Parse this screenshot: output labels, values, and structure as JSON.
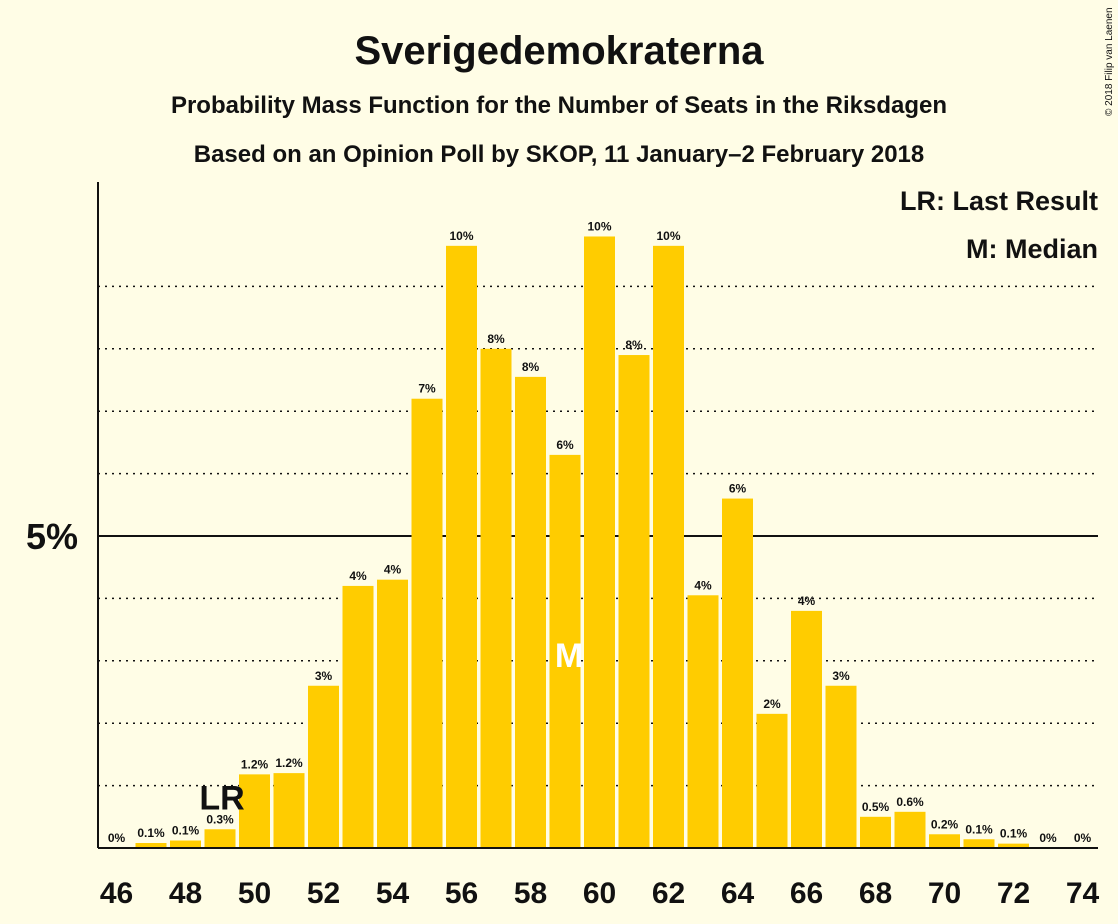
{
  "chart_data": {
    "type": "bar",
    "title": "Sverigedemokraterna",
    "subtitle": "Probability Mass Function for the Number of Seats in the Riksdagen",
    "subtitle2": "Based on an Opinion Poll by SKOP, 11 January–2 February 2018",
    "copyright": "© 2018 Filip van Laenen",
    "legend": {
      "placement": "top-right",
      "entries": [
        "LR: Last Result",
        "M: Median"
      ]
    },
    "x": [
      46,
      47,
      48,
      49,
      50,
      51,
      52,
      53,
      54,
      55,
      56,
      57,
      58,
      59,
      60,
      61,
      62,
      63,
      64,
      65,
      66,
      67,
      68,
      69,
      70,
      71,
      72,
      73,
      74
    ],
    "values": [
      0,
      0.08,
      0.12,
      0.3,
      1.18,
      1.2,
      2.6,
      4.2,
      4.3,
      7.2,
      9.65,
      8.0,
      7.55,
      6.3,
      9.8,
      7.9,
      9.65,
      4.05,
      5.6,
      2.15,
      3.8,
      2.6,
      0.5,
      0.58,
      0.22,
      0.14,
      0.07,
      0,
      0
    ],
    "labels": [
      "0%",
      "0.1%",
      "0.1%",
      "0.3%",
      "1.2%",
      "1.2%",
      "3%",
      "4%",
      "4%",
      "7%",
      "10%",
      "8%",
      "8%",
      "6%",
      "10%",
      "8%",
      "10%",
      "4%",
      "6%",
      "2%",
      "4%",
      "3%",
      "0.5%",
      "0.6%",
      "0.2%",
      "0.1%",
      "0.1%",
      "0%",
      "0%"
    ],
    "xticks": [
      46,
      48,
      50,
      52,
      54,
      56,
      58,
      60,
      62,
      64,
      66,
      68,
      70,
      72,
      74
    ],
    "ytick_label": "5%",
    "ytick_value": 5,
    "ylim": [
      0,
      10.6
    ],
    "grid": "dotted every 1%, solid at 5%",
    "last_result": {
      "seat": 49,
      "label": "LR"
    },
    "median": {
      "seat": 59,
      "label": "M"
    },
    "color": "#FFCC00",
    "background": "#FFFDE6"
  }
}
